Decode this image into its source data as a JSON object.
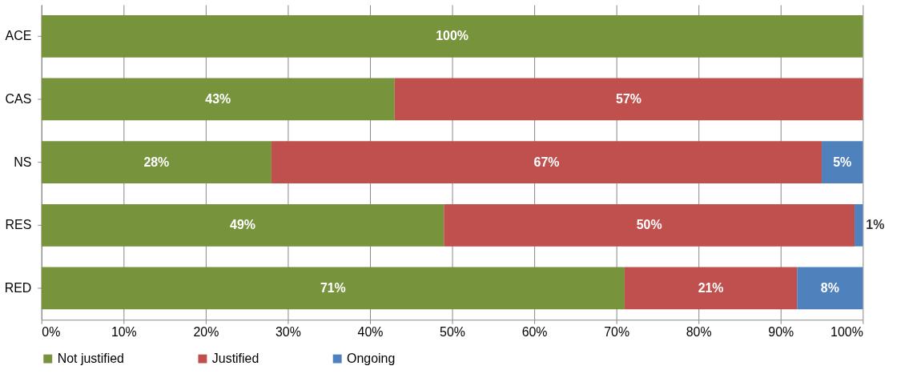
{
  "chart_data": {
    "type": "bar",
    "orientation": "horizontal",
    "stacked": true,
    "categories": [
      "ACE",
      "CAS",
      "NS",
      "RES",
      "RED"
    ],
    "series": [
      {
        "name": "Not justified",
        "color": "#77933c",
        "values": [
          100,
          43,
          28,
          49,
          71
        ],
        "value_labels": [
          "100%",
          "43%",
          "28%",
          "49%",
          "71%"
        ]
      },
      {
        "name": "Justified",
        "color": "#c0504d",
        "values": [
          null,
          57,
          67,
          50,
          21
        ],
        "value_labels": [
          null,
          "57%",
          "67%",
          "50%",
          "21%"
        ]
      },
      {
        "name": "Ongoing",
        "color": "#4f81bd",
        "values": [
          null,
          null,
          5,
          1,
          8
        ],
        "value_labels": [
          null,
          null,
          "5%",
          "1%",
          "8%"
        ]
      }
    ],
    "xlim": [
      0,
      100
    ],
    "xticks": [
      {
        "value": 0,
        "label": "0%"
      },
      {
        "value": 10,
        "label": "10%"
      },
      {
        "value": 20,
        "label": "20%"
      },
      {
        "value": 30,
        "label": "30%"
      },
      {
        "value": 40,
        "label": "40%"
      },
      {
        "value": 50,
        "label": "50%"
      },
      {
        "value": 60,
        "label": "60%"
      },
      {
        "value": 70,
        "label": "70%"
      },
      {
        "value": 80,
        "label": "80%"
      },
      {
        "value": 90,
        "label": "90%"
      },
      {
        "value": 100,
        "label": "100%"
      }
    ],
    "grid": "x",
    "legend": "bottom"
  }
}
